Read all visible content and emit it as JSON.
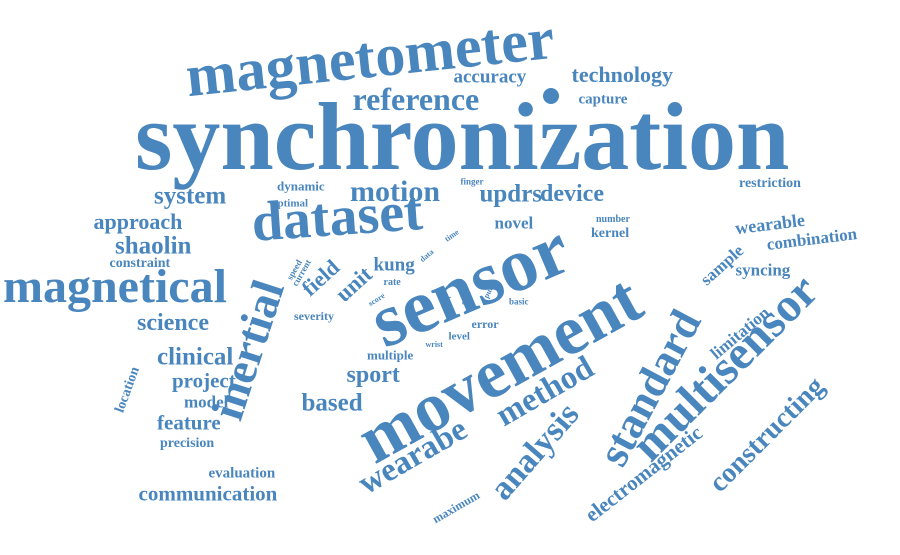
{
  "color": "#4a86be",
  "words": [
    "synchronization",
    "magnetometer",
    "sensor",
    "movement",
    "dataset",
    "magnetical",
    "inertial",
    "multisensor",
    "standard",
    "reference",
    "method",
    "analysis",
    "wearabe",
    "constructing",
    "motion",
    "electromagnetic",
    "technology",
    "accuracy",
    "capture",
    "system",
    "device",
    "updrs",
    "approach",
    "shaolin",
    "science",
    "clinical",
    "project",
    "model",
    "feature",
    "based",
    "sport",
    "communication",
    "wearable",
    "sample",
    "combination",
    "syncing",
    "limitation",
    "restriction",
    "novel",
    "kernel",
    "field",
    "unit",
    "kung",
    "location",
    "precision",
    "evaluation",
    "maximum",
    "dynamic",
    "optimal",
    "constraint",
    "severity",
    "multiple",
    "finger",
    "number",
    "speed",
    "current",
    "data",
    "time",
    "rate",
    "score",
    "pulse",
    "basic",
    "error",
    "level",
    "wrist",
    "cost",
    "set"
  ]
}
